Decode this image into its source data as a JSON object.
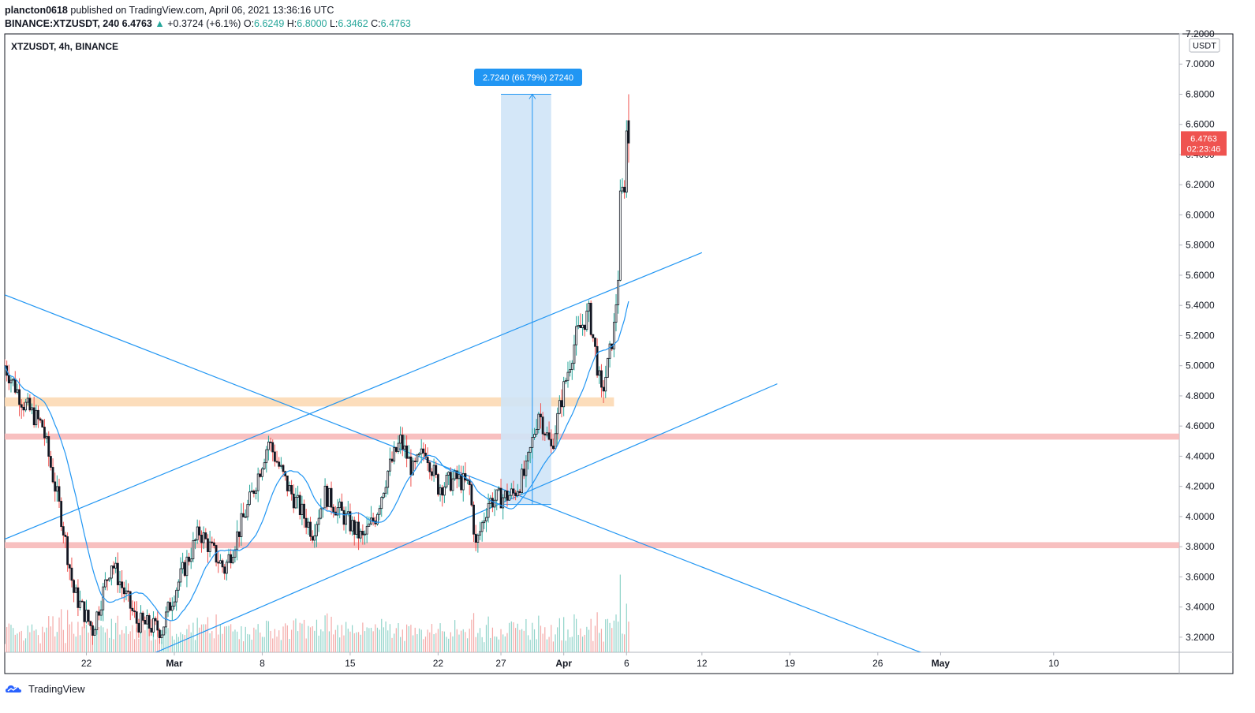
{
  "header": {
    "author": "plancton0618",
    "published_text": "published on TradingView.com, April 06, 2021 13:36:16 UTC",
    "symbol_interval": "BINANCE:XTZUSDT, 240",
    "last": "6.4763",
    "change": "+0.3724 (+6.1%)",
    "o_label": "O:",
    "o_value": "6.6249",
    "h_label": "H:",
    "h_value": "6.8000",
    "l_label": "L:",
    "l_value": "6.3462",
    "c_label": "C:",
    "c_value": "6.4763"
  },
  "legend": {
    "symbol_text": "XTZUSDT, 4h, BINANCE"
  },
  "price_scale": {
    "unit": "USDT",
    "current_price": "6.4763",
    "countdown": "02:23:46"
  },
  "measure_label": "2.7240 (66.79%) 27240",
  "footer": {
    "brand": "TradingView"
  },
  "colors": {
    "up_body": "#ffffff",
    "down_body": "#131722",
    "candle_outline": "#131722",
    "up_wick": "#26a69a",
    "down_wick": "#ef5350",
    "ma_line": "#2196f3",
    "trend_line": "#2196f3",
    "orange_zone": "#fcd9b4",
    "red_zone": "#f7b9b9",
    "measure_fill": "#cfe4f7",
    "price_label": "#ef5350"
  },
  "chart_data": {
    "type": "candlestick",
    "title": "XTZUSDT, 4h, BINANCE",
    "ylabel": "USDT",
    "ylim": [
      3.1,
      7.2
    ],
    "y_ticks": [
      "3.2000",
      "3.4000",
      "3.6000",
      "3.8000",
      "4.0000",
      "4.2000",
      "4.4000",
      "4.6000",
      "4.8000",
      "5.0000",
      "5.2000",
      "5.4000",
      "5.6000",
      "5.8000",
      "6.0000",
      "6.2000",
      "6.4000",
      "6.6000",
      "6.8000",
      "7.0000",
      "7.2000"
    ],
    "x_range": [
      "2021-02-15T12:00",
      "2021-05-20T00:00"
    ],
    "x_ticks": [
      {
        "label": "22",
        "date": "2021-02-22"
      },
      {
        "label": "Mar",
        "date": "2021-03-01"
      },
      {
        "label": "8",
        "date": "2021-03-08"
      },
      {
        "label": "15",
        "date": "2021-03-15"
      },
      {
        "label": "22",
        "date": "2021-03-22"
      },
      {
        "label": "27",
        "date": "2021-03-27"
      },
      {
        "label": "Apr",
        "date": "2021-04-01"
      },
      {
        "label": "6",
        "date": "2021-04-06"
      },
      {
        "label": "12",
        "date": "2021-04-12"
      },
      {
        "label": "19",
        "date": "2021-04-19"
      },
      {
        "label": "26",
        "date": "2021-04-26"
      },
      {
        "label": "May",
        "date": "2021-05-01"
      },
      {
        "label": "10",
        "date": "2021-05-10"
      }
    ],
    "key_prices": [
      {
        "date": "2021-02-15T12:00",
        "close": 5.0
      },
      {
        "date": "2021-02-17",
        "close": 4.75
      },
      {
        "date": "2021-02-18T12:00",
        "close": 4.6
      },
      {
        "date": "2021-02-20",
        "close": 4.0
      },
      {
        "date": "2021-02-21",
        "close": 3.5
      },
      {
        "date": "2021-02-22T12:00",
        "close": 3.25
      },
      {
        "date": "2021-02-24",
        "close": 3.7
      },
      {
        "date": "2021-02-26",
        "close": 3.3
      },
      {
        "date": "2021-02-28",
        "close": 3.25
      },
      {
        "date": "2021-03-01",
        "close": 3.5
      },
      {
        "date": "2021-03-03",
        "close": 3.9
      },
      {
        "date": "2021-03-05",
        "close": 3.65
      },
      {
        "date": "2021-03-07",
        "close": 4.1
      },
      {
        "date": "2021-03-08T12:00",
        "close": 4.5
      },
      {
        "date": "2021-03-10",
        "close": 4.2
      },
      {
        "date": "2021-03-12",
        "close": 3.9
      },
      {
        "date": "2021-03-13",
        "close": 4.15
      },
      {
        "date": "2021-03-15",
        "close": 3.95
      },
      {
        "date": "2021-03-16",
        "close": 3.85
      },
      {
        "date": "2021-03-17",
        "close": 4.0
      },
      {
        "date": "2021-03-18",
        "close": 4.3
      },
      {
        "date": "2021-03-19",
        "close": 4.5
      },
      {
        "date": "2021-03-20",
        "close": 4.3
      },
      {
        "date": "2021-03-21",
        "close": 4.45
      },
      {
        "date": "2021-03-22",
        "close": 4.2
      },
      {
        "date": "2021-03-23T12:00",
        "close": 4.25
      },
      {
        "date": "2021-03-24T12:00",
        "close": 4.2
      },
      {
        "date": "2021-03-25",
        "close": 3.8
      },
      {
        "date": "2021-03-26",
        "close": 4.1
      },
      {
        "date": "2021-03-28",
        "close": 4.15
      },
      {
        "date": "2021-03-29",
        "close": 4.3
      },
      {
        "date": "2021-03-30",
        "close": 4.7
      },
      {
        "date": "2021-03-31",
        "close": 4.45
      },
      {
        "date": "2021-04-01",
        "close": 4.85
      },
      {
        "date": "2021-04-02",
        "close": 5.2
      },
      {
        "date": "2021-04-03",
        "close": 5.35
      },
      {
        "date": "2021-04-03T12:00",
        "close": 5.1
      },
      {
        "date": "2021-04-04",
        "close": 4.8
      },
      {
        "date": "2021-04-04T12:00",
        "close": 5.0
      },
      {
        "date": "2021-04-05",
        "close": 5.25
      },
      {
        "date": "2021-04-05T08:00",
        "close": 5.6
      },
      {
        "date": "2021-04-05T12:00",
        "close": 6.1
      },
      {
        "date": "2021-04-05T20:00",
        "close": 6.2
      },
      {
        "date": "2021-04-06",
        "close": 6.55
      },
      {
        "date": "2021-04-06T04:00",
        "close": 6.4763
      }
    ],
    "last_candle": {
      "open": 6.6249,
      "high": 6.8,
      "low": 6.3462,
      "close": 6.4763
    },
    "zones": [
      {
        "type": "resistance",
        "color": "orange",
        "y_from": 4.73,
        "y_to": 4.79,
        "x_to": "2021-04-05"
      },
      {
        "type": "support",
        "color": "red",
        "y_from": 4.51,
        "y_to": 4.55
      },
      {
        "type": "support",
        "color": "red",
        "y_from": 3.79,
        "y_to": 3.83
      }
    ],
    "trend_lines": [
      {
        "name": "channel-upper",
        "p1": {
          "date": "2021-02-15T12:00",
          "price": 3.85
        },
        "p2": {
          "date": "2021-04-12",
          "price": 5.75
        }
      },
      {
        "name": "channel-lower",
        "p1": {
          "date": "2021-02-27",
          "price": 3.08
        },
        "p2": {
          "date": "2021-04-18",
          "price": 4.88
        }
      },
      {
        "name": "descending",
        "p1": {
          "date": "2021-02-15T12:00",
          "price": 5.47
        },
        "p2": {
          "date": "2021-04-30",
          "price": 3.08
        }
      }
    ],
    "measure": {
      "from_date": "2021-03-27",
      "to_date": "2021-03-31",
      "low": 4.08,
      "high": 6.8,
      "arrow_date": "2021-03-29T12:00"
    }
  }
}
